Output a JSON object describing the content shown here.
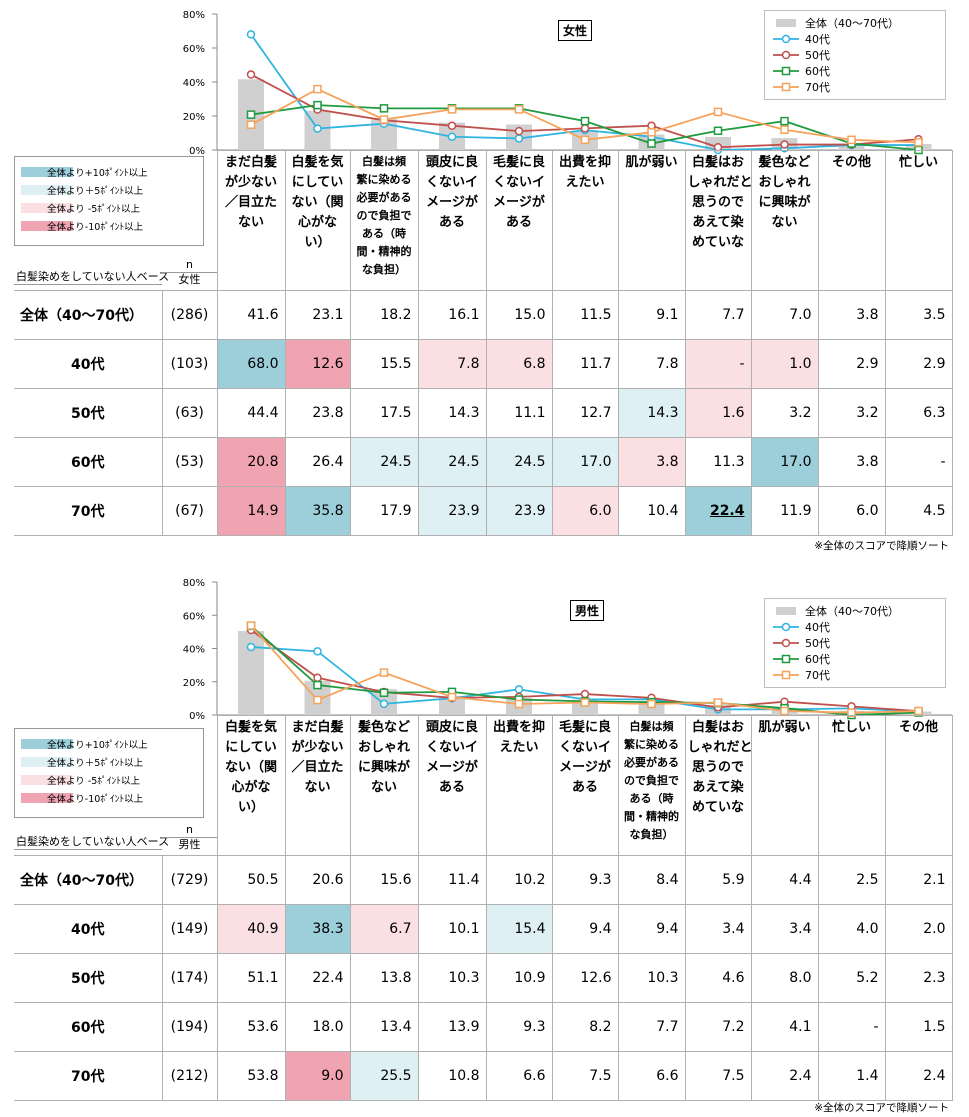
{
  "color_key": [
    {
      "label": "全体より+10ﾎﾟｲﾝﾄ以上",
      "color": "#9dcfdb"
    },
    {
      "label": "全体より＋5ﾎﾟｲﾝﾄ以上",
      "color": "#dff0f5"
    },
    {
      "label": "全体より -5ﾎﾟｲﾝﾄ以上",
      "color": "#fadfe3"
    },
    {
      "label": "全体より-10ﾎﾟｲﾝﾄ以上",
      "color": "#f0a4b1"
    }
  ],
  "base_label": "白髪染めをしていない人ベース",
  "note": "※全体のスコアで降順ソート",
  "chart_data": [
    {
      "type": "line",
      "title": "女性",
      "n_label": "n",
      "gender_sub": "女性",
      "ylim": [
        0,
        80
      ],
      "yticks": [
        "0%",
        "20%",
        "40%",
        "60%",
        "80%"
      ],
      "categories": [
        "まだ白髪が少ない／目立たない",
        "白髪を気にしていない（関心がない）",
        "白髪は頻繁に染める必要があるので負担である（時間・精神的な負担）",
        "頭皮に良くないイメージがある",
        "毛髪に良くないイメージがある",
        "出費を抑えたい",
        "肌が弱い",
        "白髪はおしゃれだと思うのであえて染めていない",
        "髪色などおしゃれに興味がない",
        "その他",
        "忙しい"
      ],
      "header_lines": [
        [
          "まだ白髪",
          "が少ない",
          "／目立た",
          "ない"
        ],
        [
          "白髪を気",
          "にしてい",
          "ない（関",
          "心がな",
          "い）"
        ],
        [
          "白髪は頻",
          "繁に染める",
          "必要がある",
          "ので負担で",
          "ある（時",
          "間・精神的",
          "な負担）"
        ],
        [
          "頭皮に良",
          "くないイ",
          "メージが",
          "ある"
        ],
        [
          "毛髪に良",
          "くないイ",
          "メージが",
          "ある"
        ],
        [
          "出費を抑",
          "えたい"
        ],
        [
          "肌が弱い"
        ],
        [
          "白髪はお",
          "しゃれだと",
          "思うので",
          "あえて染",
          "めていな"
        ],
        [
          "髪色など",
          "おしゃれ",
          "に興味が",
          "ない"
        ],
        [
          "その他"
        ],
        [
          "忙しい"
        ]
      ],
      "series": [
        {
          "name": "全体（40～70代）",
          "kind": "bar",
          "color": "#d0d0d0",
          "values": [
            41.6,
            23.1,
            18.2,
            16.1,
            15.0,
            11.5,
            9.1,
            7.7,
            7.0,
            3.8,
            3.5
          ]
        },
        {
          "name": "40代",
          "kind": "line",
          "color": "#2fb5e0",
          "values": [
            68.0,
            12.6,
            15.5,
            7.8,
            6.8,
            11.7,
            7.8,
            0,
            1.0,
            2.9,
            2.9
          ]
        },
        {
          "name": "50代",
          "kind": "line",
          "color": "#c0504d",
          "values": [
            44.4,
            23.8,
            17.5,
            14.3,
            11.1,
            12.7,
            14.3,
            1.6,
            3.2,
            3.2,
            6.3
          ]
        },
        {
          "name": "60代",
          "kind": "line",
          "color": "#1f9a3e",
          "values": [
            20.8,
            26.4,
            24.5,
            24.5,
            24.5,
            17.0,
            3.8,
            11.3,
            17.0,
            3.8,
            0
          ]
        },
        {
          "name": "70代",
          "kind": "line",
          "color": "#f5a35c",
          "values": [
            14.9,
            35.8,
            17.9,
            23.9,
            23.9,
            6.0,
            10.4,
            22.4,
            11.9,
            6.0,
            4.5
          ]
        }
      ],
      "table": [
        {
          "label": "全体（40～70代）",
          "n": "(286)",
          "cells": [
            "41.6",
            "23.1",
            "18.2",
            "16.1",
            "15.0",
            "11.5",
            "9.1",
            "7.7",
            "7.0",
            "3.8",
            "3.5"
          ],
          "hl": [
            "",
            "",
            "",
            "",
            "",
            "",
            "",
            "",
            "",
            "",
            ""
          ]
        },
        {
          "label": "40代",
          "n": "(103)",
          "cells": [
            "68.0",
            "12.6",
            "15.5",
            "7.8",
            "6.8",
            "11.7",
            "7.8",
            "-",
            "1.0",
            "2.9",
            "2.9"
          ],
          "hl": [
            "pos10",
            "neg10",
            "",
            "neg5",
            "neg5",
            "",
            "",
            "neg5",
            "neg5",
            "",
            ""
          ]
        },
        {
          "label": "50代",
          "n": "(63)",
          "cells": [
            "44.4",
            "23.8",
            "17.5",
            "14.3",
            "11.1",
            "12.7",
            "14.3",
            "1.6",
            "3.2",
            "3.2",
            "6.3"
          ],
          "hl": [
            "",
            "",
            "",
            "",
            "",
            "",
            "pos5",
            "neg5",
            "",
            "",
            ""
          ]
        },
        {
          "label": "60代",
          "n": "(53)",
          "cells": [
            "20.8",
            "26.4",
            "24.5",
            "24.5",
            "24.5",
            "17.0",
            "3.8",
            "11.3",
            "17.0",
            "3.8",
            "-"
          ],
          "hl": [
            "neg10",
            "",
            "pos5",
            "pos5",
            "pos5",
            "pos5",
            "neg5",
            "",
            "pos10",
            "",
            ""
          ]
        },
        {
          "label": "70代",
          "n": "(67)",
          "cells": [
            "14.9",
            "35.8",
            "17.9",
            "23.9",
            "23.9",
            "6.0",
            "10.4",
            "22.4",
            "11.9",
            "6.0",
            "4.5"
          ],
          "hl": [
            "neg10",
            "pos10",
            "",
            "pos5",
            "pos5",
            "neg5",
            "",
            "pos10b",
            "",
            "",
            ""
          ]
        }
      ]
    },
    {
      "type": "line",
      "title": "男性",
      "n_label": "n",
      "gender_sub": "男性",
      "ylim": [
        0,
        80
      ],
      "yticks": [
        "0%",
        "20%",
        "40%",
        "60%",
        "80%"
      ],
      "categories": [
        "白髪を気にしていない（関心がない）",
        "まだ白髪が少ない／目立たない",
        "髪色などおしゃれに興味がない",
        "頭皮に良くないイメージがある",
        "出費を抑えたい",
        "毛髪に良くないイメージがある",
        "白髪は頻繁に染める必要があるので負担である（時間・精神的な負担）",
        "白髪はおしゃれだと思うのであえて染めていない",
        "肌が弱い",
        "忙しい",
        "その他"
      ],
      "header_lines": [
        [
          "白髪を気",
          "にしてい",
          "ない（関",
          "心がな",
          "い）"
        ],
        [
          "まだ白髪",
          "が少ない",
          "／目立た",
          "ない"
        ],
        [
          "髪色など",
          "おしゃれ",
          "に興味が",
          "ない"
        ],
        [
          "頭皮に良",
          "くないイ",
          "メージが",
          "ある"
        ],
        [
          "出費を抑",
          "えたい"
        ],
        [
          "毛髪に良",
          "くないイ",
          "メージが",
          "ある"
        ],
        [
          "白髪は頻",
          "繁に染める",
          "必要がある",
          "ので負担で",
          "ある（時",
          "間・精神的",
          "な負担）"
        ],
        [
          "白髪はお",
          "しゃれだと",
          "思うので",
          "あえて染",
          "めていな"
        ],
        [
          "肌が弱い"
        ],
        [
          "忙しい"
        ],
        [
          "その他"
        ]
      ],
      "series": [
        {
          "name": "全体（40～70代）",
          "kind": "bar",
          "color": "#d0d0d0",
          "values": [
            50.5,
            20.6,
            15.6,
            11.4,
            10.2,
            9.3,
            8.4,
            5.9,
            4.4,
            2.5,
            2.1
          ]
        },
        {
          "name": "40代",
          "kind": "line",
          "color": "#2fb5e0",
          "values": [
            40.9,
            38.3,
            6.7,
            10.1,
            15.4,
            9.4,
            9.4,
            3.4,
            3.4,
            4.0,
            2.0
          ]
        },
        {
          "name": "50代",
          "kind": "line",
          "color": "#c0504d",
          "values": [
            51.1,
            22.4,
            13.8,
            10.3,
            10.9,
            12.6,
            10.3,
            4.6,
            8.0,
            5.2,
            2.3
          ]
        },
        {
          "name": "60代",
          "kind": "line",
          "color": "#1f9a3e",
          "values": [
            53.6,
            18.0,
            13.4,
            13.9,
            9.3,
            8.2,
            7.7,
            7.2,
            4.1,
            0,
            1.5
          ]
        },
        {
          "name": "70代",
          "kind": "line",
          "color": "#f5a35c",
          "values": [
            53.8,
            9.0,
            25.5,
            10.8,
            6.6,
            7.5,
            6.6,
            7.5,
            2.4,
            1.4,
            2.4
          ]
        }
      ],
      "table": [
        {
          "label": "全体（40～70代）",
          "n": "(729)",
          "cells": [
            "50.5",
            "20.6",
            "15.6",
            "11.4",
            "10.2",
            "9.3",
            "8.4",
            "5.9",
            "4.4",
            "2.5",
            "2.1"
          ],
          "hl": [
            "",
            "",
            "",
            "",
            "",
            "",
            "",
            "",
            "",
            "",
            ""
          ]
        },
        {
          "label": "40代",
          "n": "(149)",
          "cells": [
            "40.9",
            "38.3",
            "6.7",
            "10.1",
            "15.4",
            "9.4",
            "9.4",
            "3.4",
            "3.4",
            "4.0",
            "2.0"
          ],
          "hl": [
            "neg5",
            "pos10",
            "neg5",
            "",
            "pos5",
            "",
            "",
            "",
            "",
            "",
            ""
          ]
        },
        {
          "label": "50代",
          "n": "(174)",
          "cells": [
            "51.1",
            "22.4",
            "13.8",
            "10.3",
            "10.9",
            "12.6",
            "10.3",
            "4.6",
            "8.0",
            "5.2",
            "2.3"
          ],
          "hl": [
            "",
            "",
            "",
            "",
            "",
            "",
            "",
            "",
            "",
            "",
            ""
          ]
        },
        {
          "label": "60代",
          "n": "(194)",
          "cells": [
            "53.6",
            "18.0",
            "13.4",
            "13.9",
            "9.3",
            "8.2",
            "7.7",
            "7.2",
            "4.1",
            "-",
            "1.5"
          ],
          "hl": [
            "",
            "",
            "",
            "",
            "",
            "",
            "",
            "",
            "",
            "",
            ""
          ]
        },
        {
          "label": "70代",
          "n": "(212)",
          "cells": [
            "53.8",
            "9.0",
            "25.5",
            "10.8",
            "6.6",
            "7.5",
            "6.6",
            "7.5",
            "2.4",
            "1.4",
            "2.4"
          ],
          "hl": [
            "",
            "neg10",
            "pos5",
            "",
            "",
            "",
            "",
            "",
            "",
            "",
            ""
          ]
        }
      ]
    }
  ]
}
